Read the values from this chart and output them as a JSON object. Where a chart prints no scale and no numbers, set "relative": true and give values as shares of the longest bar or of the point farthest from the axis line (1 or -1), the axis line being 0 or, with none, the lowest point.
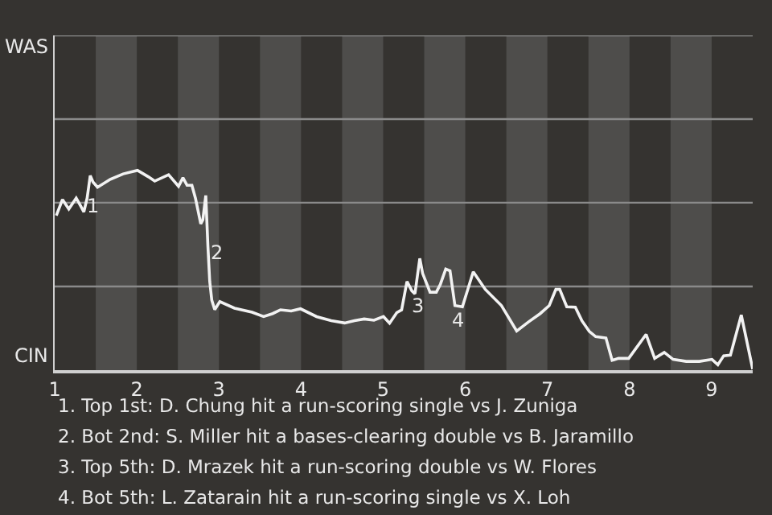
{
  "chart_data": {
    "type": "line",
    "relative": true,
    "x": [
      1.02,
      1.095,
      1.172,
      1.262,
      1.317,
      1.355,
      1.395,
      1.433,
      1.467,
      1.522,
      1.678,
      1.834,
      2.008,
      2.139,
      2.218,
      2.387,
      2.508,
      2.562,
      2.612,
      2.671,
      2.714,
      2.779,
      2.804,
      2.84,
      2.866,
      2.888,
      2.913,
      2.949,
      3.011,
      3.189,
      3.404,
      3.544,
      3.654,
      3.75,
      3.879,
      3.994,
      4.189,
      4.368,
      4.531,
      4.65,
      4.769,
      4.888,
      5.004,
      5.078,
      5.166,
      5.225,
      5.29,
      5.349,
      5.387,
      5.446,
      5.481,
      5.571,
      5.647,
      5.697,
      5.762,
      5.814,
      5.874,
      5.965,
      6.097,
      6.244,
      6.441,
      6.626,
      6.769,
      6.912,
      7.022,
      7.103,
      7.15,
      7.236,
      7.34,
      7.419,
      7.51,
      7.588,
      7.713,
      7.788,
      7.865,
      7.99,
      8.202,
      8.306,
      8.423,
      8.531,
      8.69,
      8.85,
      9.004,
      9.076,
      9.147,
      9.229,
      9.361,
      9.5
    ],
    "series": [
      {
        "color": "#f2f2f2",
        "values": [
          0.774,
          0.854,
          0.806,
          0.861,
          0.821,
          0.792,
          0.861,
          0.973,
          0.941,
          0.915,
          0.955,
          0.982,
          1,
          0.968,
          0.946,
          0.978,
          0.92,
          0.963,
          0.925,
          0.925,
          0.861,
          0.732,
          0.752,
          0.874,
          0.618,
          0.444,
          0.35,
          0.303,
          0.343,
          0.31,
          0.29,
          0.268,
          0.283,
          0.302,
          0.296,
          0.307,
          0.268,
          0.248,
          0.236,
          0.248,
          0.256,
          0.25,
          0.268,
          0.235,
          0.288,
          0.302,
          0.444,
          0.397,
          0.382,
          0.559,
          0.484,
          0.39,
          0.39,
          0.43,
          0.506,
          0.497,
          0.323,
          0.317,
          0.492,
          0.404,
          0.323,
          0.196,
          0.241,
          0.283,
          0.323,
          0.404,
          0.404,
          0.317,
          0.315,
          0.248,
          0.194,
          0.168,
          0.161,
          0.049,
          0.059,
          0.059,
          0.179,
          0.059,
          0.089,
          0.054,
          0.044,
          0.044,
          0.054,
          0.027,
          0.072,
          0.075,
          0.276,
          0.005
        ]
      }
    ],
    "xlim": [
      1,
      9.5
    ],
    "xticks": [
      1,
      2,
      3,
      4,
      5,
      6,
      7,
      8,
      9
    ],
    "tick_labels": "x",
    "ref_lines": [
      {
        "axis": "y",
        "value": 0.419,
        "color": "#8a8a8a"
      },
      {
        "axis": "y",
        "value": 0.838,
        "color": "#8a8a8a"
      },
      {
        "axis": "y",
        "value": 1.256,
        "color": "#8a8a8a"
      },
      {
        "axis": "y",
        "value": 1.675,
        "color": "#8a8a8a"
      }
    ],
    "marker": "none",
    "line_style": "solid",
    "bands": [
      {
        "axis": "x",
        "from": 1.5,
        "to": 2,
        "color": "#4e4d4b"
      },
      {
        "axis": "x",
        "from": 2.5,
        "to": 3,
        "color": "#4e4d4b"
      },
      {
        "axis": "x",
        "from": 3.5,
        "to": 4,
        "color": "#4e4d4b"
      },
      {
        "axis": "x",
        "from": 4.5,
        "to": 5,
        "color": "#4e4d4b"
      },
      {
        "axis": "x",
        "from": 5.5,
        "to": 6,
        "color": "#4e4d4b"
      },
      {
        "axis": "x",
        "from": 6.5,
        "to": 7,
        "color": "#4e4d4b"
      },
      {
        "axis": "x",
        "from": 7.5,
        "to": 8,
        "color": "#4e4d4b"
      },
      {
        "axis": "x",
        "from": 8.5,
        "to": 9,
        "color": "#4e4d4b"
      }
    ],
    "annotations": [
      {
        "text": "1",
        "x": 1.467,
        "y": 0.821
      },
      {
        "text": "2",
        "x": 2.97,
        "y": 0.586
      },
      {
        "text": "3",
        "x": 5.43,
        "y": 0.32
      },
      {
        "text": "4",
        "x": 5.92,
        "y": 0.25
      },
      "WAS",
      "CIN",
      "1. Top 1st: D. Chung hit a run-scoring single vs J. Zuniga",
      "2. Bot 2nd: S. Miller hit a bases-clearing double vs B. Jaramillo",
      "3. Top 5th: D. Mrazek hit a run-scoring double vs W. Flores",
      "4. Bot 5th: L. Zatarain hit a run-scoring single vs X. Loh"
    ]
  }
}
